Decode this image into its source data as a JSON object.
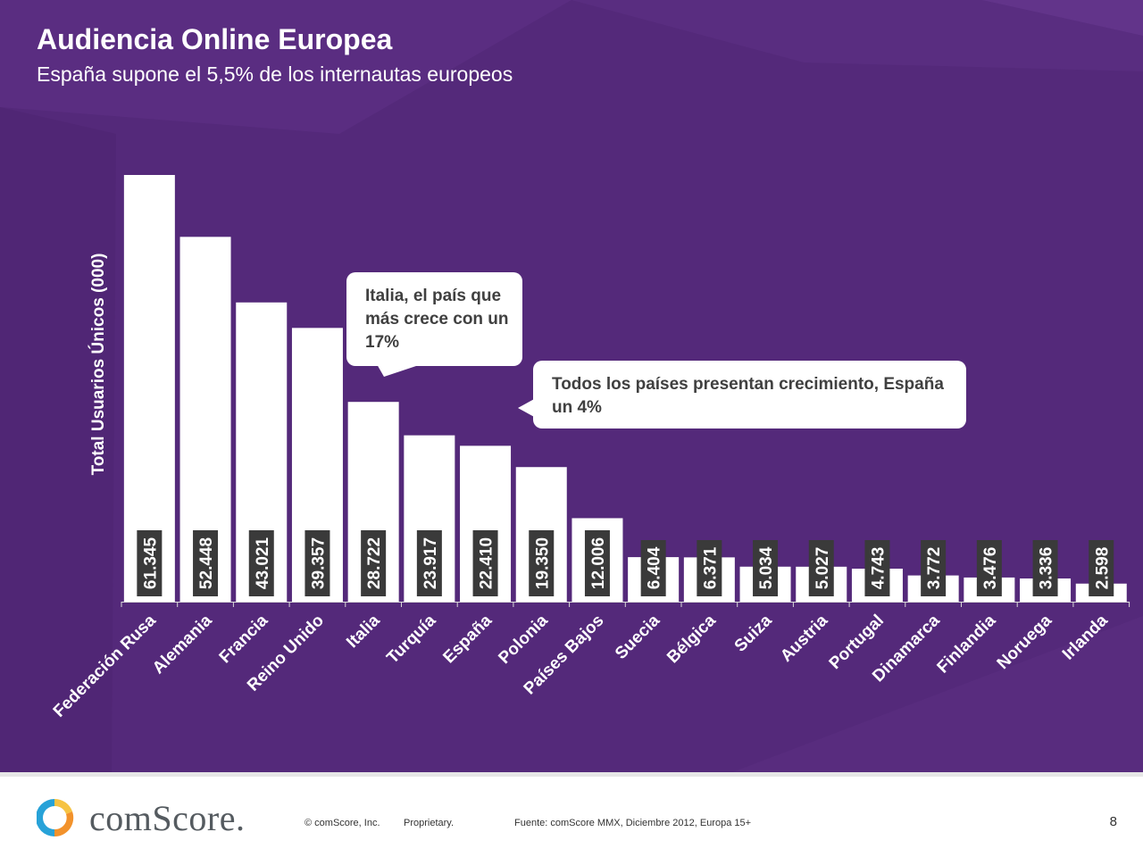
{
  "slide": {
    "title": "Audiencia Online Europea",
    "subtitle": "España supone el 5,5% de los internautas europeos"
  },
  "chart_data": {
    "type": "bar",
    "title": "Audiencia Online Europea",
    "ylabel": "Total Usuarios Únicos (000)",
    "xlabel": "",
    "ylim": [
      0,
      65000
    ],
    "categories": [
      "Federación Rusa",
      "Alemania",
      "Francia",
      "Reino Unido",
      "Italia",
      "Turquía",
      "España",
      "Polonia",
      "Países Bajos",
      "Suecia",
      "Bélgica",
      "Suiza",
      "Austria",
      "Portugal",
      "Dinamarca",
      "Finlandia",
      "Noruega",
      "Irlanda"
    ],
    "values": [
      61345,
      52448,
      43021,
      39357,
      28722,
      23917,
      22410,
      19350,
      12006,
      6404,
      6371,
      5034,
      5027,
      4743,
      3772,
      3476,
      3336,
      2598
    ],
    "value_labels": [
      "61.345",
      "52.448",
      "43.021",
      "39.357",
      "28.722",
      "23.917",
      "22.410",
      "19.350",
      "12.006",
      "6.404",
      "6.371",
      "5.034",
      "5.027",
      "4.743",
      "3.772",
      "3.476",
      "3.336",
      "2.598"
    ],
    "grid": false,
    "legend": "none"
  },
  "callouts": [
    {
      "text": "Italia, el país que más crece con un 17%"
    },
    {
      "text": "Todos los países presentan crecimiento, España un 4%"
    }
  ],
  "footer": {
    "brand": "comScore.",
    "copyright": "© comScore, Inc.",
    "proprietary": "Proprietary.",
    "source": "Fuente: comScore MMX, Diciembre 2012, Europa 15+",
    "page_number": "8"
  },
  "colors": {
    "background": "#54297a",
    "bar": "#ffffff",
    "label_box": "#3a3a3a",
    "text": "#ffffff"
  }
}
